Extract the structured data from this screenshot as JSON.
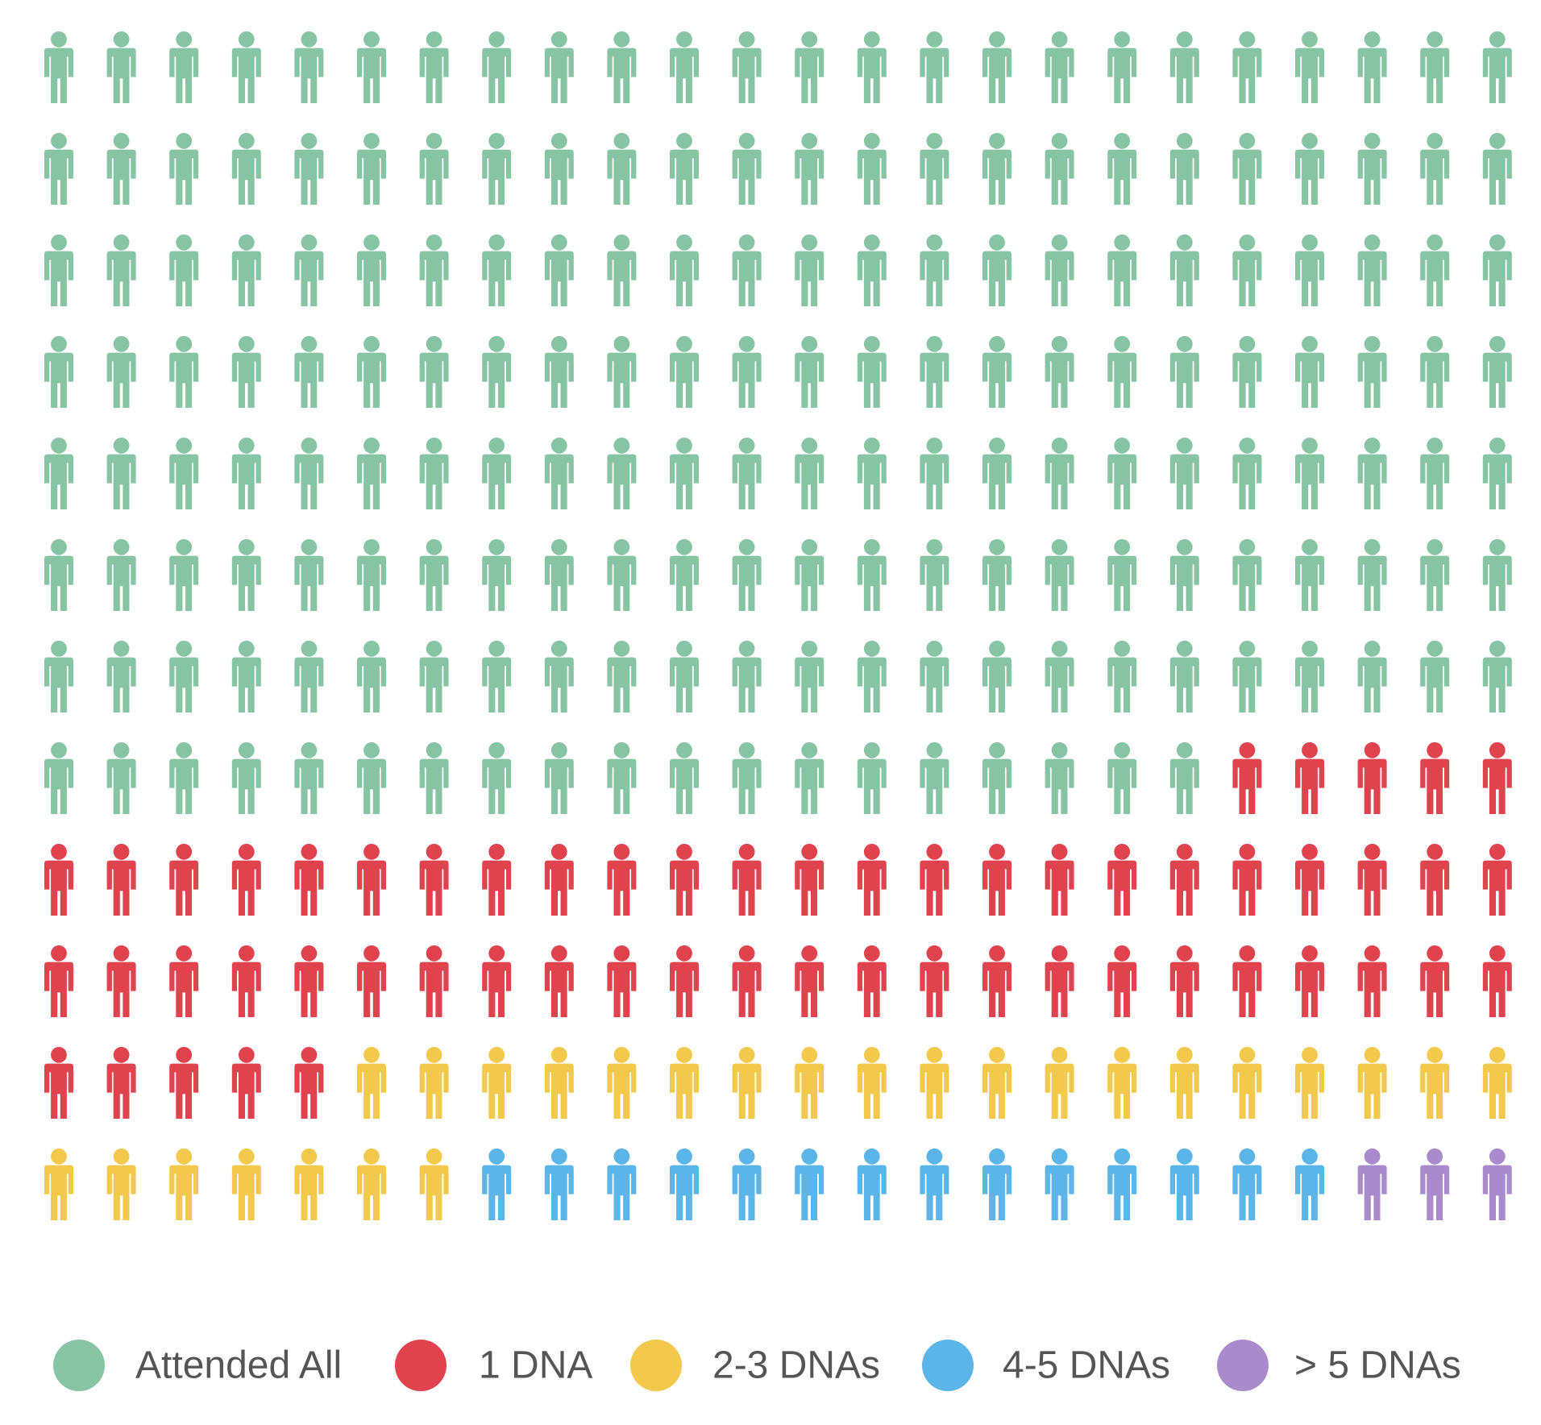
{
  "chart_data": {
    "type": "pictogram",
    "grid": {
      "rows": 12,
      "columns": 24
    },
    "icon": "person-icon",
    "fill_order": "row-major, left-to-right, top-to-bottom",
    "categories": [
      {
        "name": "Attended All",
        "count": 187,
        "color": "#86c4a4"
      },
      {
        "name": "1 DNA",
        "count": 58,
        "color": "#e0434e"
      },
      {
        "name": "2-3 DNAs",
        "count": 26,
        "color": "#f2c94c"
      },
      {
        "name": "4-5 DNAs",
        "count": 14,
        "color": "#5bb5e8"
      },
      {
        "name": "> 5 DNAs",
        "count": 3,
        "color": "#a98acb"
      }
    ],
    "legend_position": "bottom"
  }
}
